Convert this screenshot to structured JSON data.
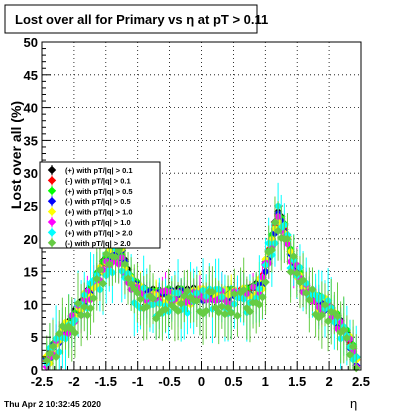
{
  "chart_data": {
    "type": "scatter",
    "title": "Lost over all for Primary vs   η at pT > 0.11",
    "ylabel": "Lost over all (%)",
    "xlabel": "η",
    "xlim": [
      -2.5,
      2.5
    ],
    "ylim": [
      0,
      50
    ],
    "x_ticks": [
      -2.5,
      -2,
      -1.5,
      -1,
      -0.5,
      0,
      0.5,
      1,
      1.5,
      2,
      2.5
    ],
    "x_tick_labels": [
      "-2.5",
      "-2",
      "-1.5",
      "-1",
      "-0.5",
      "0",
      "0.5",
      "1",
      "1.5",
      "2",
      "2.5"
    ],
    "y_ticks": [
      0,
      5,
      10,
      15,
      20,
      25,
      30,
      35,
      40,
      45,
      50
    ],
    "y_tick_labels": [
      "0",
      "5",
      "10",
      "15",
      "20",
      "25",
      "30",
      "35",
      "40",
      "45",
      "50"
    ],
    "grid": true,
    "legend_position": "left-middle",
    "series": [
      {
        "name": "(+) with pT/|q| > 0.1",
        "color": "#000000",
        "ptcut": 0.1,
        "sign": 1
      },
      {
        "name": "(-) with pT/|q| > 0.1",
        "color": "#ff0000",
        "ptcut": 0.1,
        "sign": -1
      },
      {
        "name": "(+) with pT/|q| > 0.5",
        "color": "#00ff00",
        "ptcut": 0.5,
        "sign": 1
      },
      {
        "name": "(-) with pT/|q| > 0.5",
        "color": "#0000ff",
        "ptcut": 0.5,
        "sign": -1
      },
      {
        "name": "(+) with pT/|q| > 1.0",
        "color": "#ffff00",
        "ptcut": 1.0,
        "sign": 1
      },
      {
        "name": "(-) with pT/|q| > 1.0",
        "color": "#ff00ff",
        "ptcut": 1.0,
        "sign": -1
      },
      {
        "name": "(+) with pT/|q| > 2.0",
        "color": "#00ffff",
        "ptcut": 2.0,
        "sign": 1
      },
      {
        "name": "(-) with pT/|q| > 2.0",
        "color": "#66cc44",
        "ptcut": 2.0,
        "sign": -1
      }
    ],
    "profile": {
      "x": [
        -2.45,
        -2.3,
        -2.1,
        -1.9,
        -1.7,
        -1.55,
        -1.45,
        -1.35,
        -1.25,
        -1.15,
        -1.05,
        -0.95,
        -0.8,
        -0.6,
        -0.4,
        -0.2,
        0,
        0.2,
        0.4,
        0.6,
        0.8,
        0.95,
        1.05,
        1.15,
        1.2,
        1.3,
        1.4,
        1.6,
        1.8,
        2.0,
        2.2,
        2.35,
        2.45
      ],
      "y": [
        1,
        4,
        7,
        10,
        13,
        16,
        17.5,
        18,
        18,
        15,
        13,
        12.5,
        12,
        12,
        12,
        12,
        12,
        12,
        12,
        12,
        12.5,
        14,
        18,
        22,
        24,
        22,
        18,
        13,
        11,
        10,
        7,
        4,
        1
      ]
    }
  },
  "footer": {
    "timestamp": "Thu Apr  2 10:32:45 2020"
  }
}
